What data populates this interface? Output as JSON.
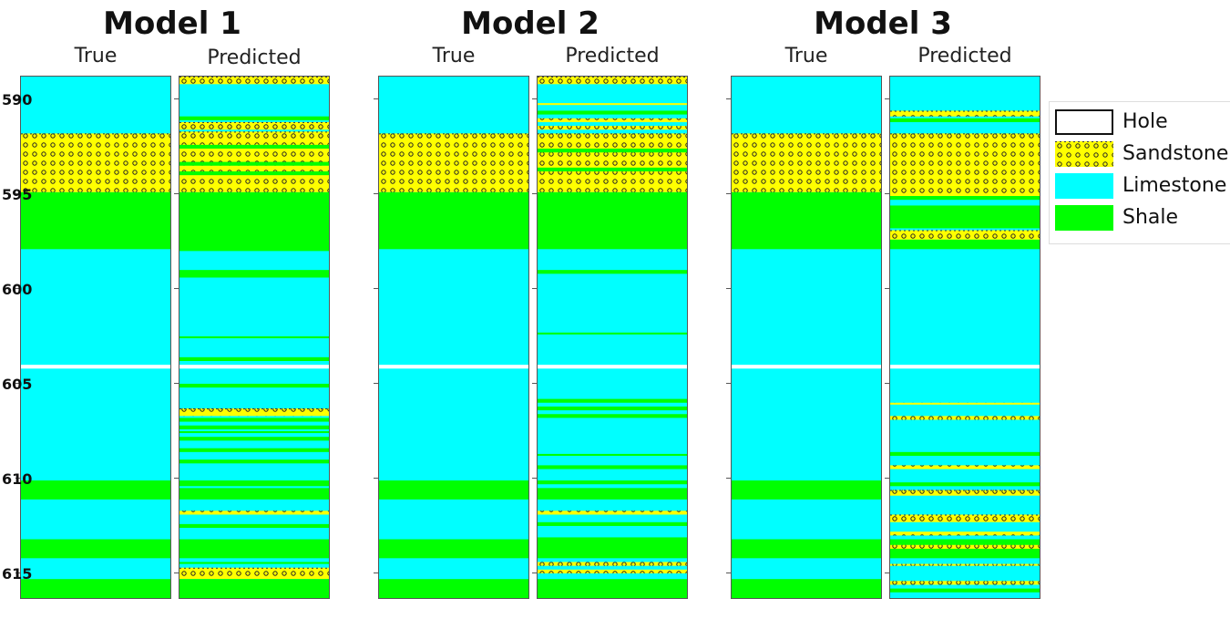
{
  "chart_data": {
    "type": "table",
    "depth_range": [
      588.8,
      616.3
    ],
    "depth_ticks": [
      590,
      595,
      600,
      605,
      610,
      615
    ],
    "legend": [
      {
        "name": "Hole",
        "color": "#ffffff",
        "pattern": "none"
      },
      {
        "name": "Sandstone",
        "color": "#ffff00",
        "pattern": "circles"
      },
      {
        "name": "Limestone",
        "color": "#00ffff",
        "pattern": "none"
      },
      {
        "name": "Shale",
        "color": "#00ff00",
        "pattern": "none"
      }
    ],
    "background_lithology": "Limestone",
    "panels": [
      {
        "title": "Model 1",
        "columns": [
          {
            "label": "True",
            "intervals": [
              [
                591.8,
                594.9,
                "Sandstone"
              ],
              [
                594.9,
                597.9,
                "Shale"
              ],
              [
                604.0,
                604.2,
                "Hole"
              ],
              [
                610.1,
                611.1,
                "Shale"
              ],
              [
                613.2,
                614.2,
                "Shale"
              ],
              [
                615.3,
                616.3,
                "Shale"
              ]
            ]
          },
          {
            "label": "Predicted",
            "intervals": [
              [
                588.8,
                589.2,
                "Sandstone"
              ],
              [
                590.9,
                591.1,
                "Shale"
              ],
              [
                591.2,
                591.6,
                "Sandstone"
              ],
              [
                591.7,
                594.9,
                "Sandstone"
              ],
              [
                592.4,
                592.6,
                "Shale"
              ],
              [
                593.3,
                593.5,
                "Shale"
              ],
              [
                593.8,
                594.0,
                "Shale"
              ],
              [
                594.9,
                598.0,
                "Shale"
              ],
              [
                599.0,
                599.4,
                "Shale"
              ],
              [
                602.5,
                602.6,
                "Shale"
              ],
              [
                603.6,
                603.8,
                "Shale"
              ],
              [
                604.0,
                604.2,
                "Hole"
              ],
              [
                605.0,
                605.2,
                "Shale"
              ],
              [
                606.3,
                606.7,
                "Sandstone"
              ],
              [
                606.8,
                607.0,
                "Shale"
              ],
              [
                607.2,
                607.4,
                "Shale"
              ],
              [
                607.5,
                607.6,
                "Shale"
              ],
              [
                607.8,
                608.0,
                "Shale"
              ],
              [
                608.4,
                608.6,
                "Shale"
              ],
              [
                609.0,
                609.2,
                "Shale"
              ],
              [
                610.1,
                610.4,
                "Shale"
              ],
              [
                610.5,
                611.1,
                "Shale"
              ],
              [
                611.7,
                611.9,
                "Sandstone"
              ],
              [
                612.4,
                612.6,
                "Shale"
              ],
              [
                613.2,
                614.2,
                "Shale"
              ],
              [
                614.4,
                614.5,
                "Shale"
              ],
              [
                614.7,
                615.3,
                "Sandstone"
              ],
              [
                615.3,
                616.3,
                "Shale"
              ]
            ]
          }
        ]
      },
      {
        "title": "Model 2",
        "columns": [
          {
            "label": "True",
            "intervals": [
              [
                591.8,
                594.9,
                "Sandstone"
              ],
              [
                594.9,
                597.9,
                "Shale"
              ],
              [
                604.0,
                604.2,
                "Hole"
              ],
              [
                610.1,
                611.1,
                "Shale"
              ],
              [
                613.2,
                614.2,
                "Shale"
              ],
              [
                615.3,
                616.3,
                "Shale"
              ]
            ]
          },
          {
            "label": "Predicted",
            "intervals": [
              [
                588.8,
                589.2,
                "Sandstone"
              ],
              [
                590.2,
                590.3,
                "Sandstone"
              ],
              [
                590.6,
                590.8,
                "Shale"
              ],
              [
                591.0,
                591.2,
                "Sandstone"
              ],
              [
                591.4,
                591.6,
                "Sandstone"
              ],
              [
                591.8,
                594.9,
                "Sandstone"
              ],
              [
                592.6,
                592.8,
                "Shale"
              ],
              [
                593.6,
                593.8,
                "Shale"
              ],
              [
                594.9,
                597.9,
                "Shale"
              ],
              [
                599.0,
                599.2,
                "Shale"
              ],
              [
                602.3,
                602.4,
                "Shale"
              ],
              [
                604.0,
                604.2,
                "Hole"
              ],
              [
                605.8,
                606.0,
                "Shale"
              ],
              [
                606.2,
                606.4,
                "Shale"
              ],
              [
                606.6,
                606.8,
                "Shale"
              ],
              [
                608.7,
                608.8,
                "Shale"
              ],
              [
                609.3,
                609.5,
                "Shale"
              ],
              [
                610.1,
                610.3,
                "Shale"
              ],
              [
                610.5,
                611.1,
                "Shale"
              ],
              [
                611.7,
                611.9,
                "Sandstone"
              ],
              [
                612.3,
                612.5,
                "Shale"
              ],
              [
                613.1,
                614.2,
                "Shale"
              ],
              [
                614.4,
                614.6,
                "Sandstone"
              ],
              [
                614.8,
                615.0,
                "Sandstone"
              ],
              [
                615.3,
                616.3,
                "Shale"
              ]
            ]
          }
        ]
      },
      {
        "title": "Model 3",
        "columns": [
          {
            "label": "True",
            "intervals": [
              [
                591.8,
                594.9,
                "Sandstone"
              ],
              [
                594.9,
                597.9,
                "Shale"
              ],
              [
                604.0,
                604.2,
                "Hole"
              ],
              [
                610.1,
                611.1,
                "Shale"
              ],
              [
                613.2,
                614.2,
                "Shale"
              ],
              [
                615.3,
                616.3,
                "Shale"
              ]
            ]
          },
          {
            "label": "Predicted",
            "intervals": [
              [
                590.6,
                590.9,
                "Sandstone"
              ],
              [
                591.0,
                591.2,
                "Shale"
              ],
              [
                591.8,
                595.1,
                "Sandstone"
              ],
              [
                595.1,
                595.3,
                "Shale"
              ],
              [
                595.6,
                596.8,
                "Shale"
              ],
              [
                596.9,
                597.4,
                "Sandstone"
              ],
              [
                597.4,
                597.9,
                "Shale"
              ],
              [
                604.0,
                604.2,
                "Hole"
              ],
              [
                606.0,
                606.1,
                "Sandstone"
              ],
              [
                606.7,
                606.9,
                "Sandstone"
              ],
              [
                608.6,
                608.8,
                "Shale"
              ],
              [
                609.3,
                609.5,
                "Sandstone"
              ],
              [
                610.2,
                610.4,
                "Shale"
              ],
              [
                610.6,
                610.9,
                "Sandstone"
              ],
              [
                611.9,
                612.3,
                "Sandstone"
              ],
              [
                612.8,
                613.0,
                "Sandstone"
              ],
              [
                613.2,
                614.2,
                "Shale"
              ],
              [
                613.5,
                613.7,
                "Sandstone"
              ],
              [
                614.5,
                614.6,
                "Sandstone"
              ],
              [
                615.4,
                615.6,
                "Sandstone"
              ],
              [
                615.8,
                616.0,
                "Shale"
              ]
            ]
          }
        ]
      }
    ]
  }
}
